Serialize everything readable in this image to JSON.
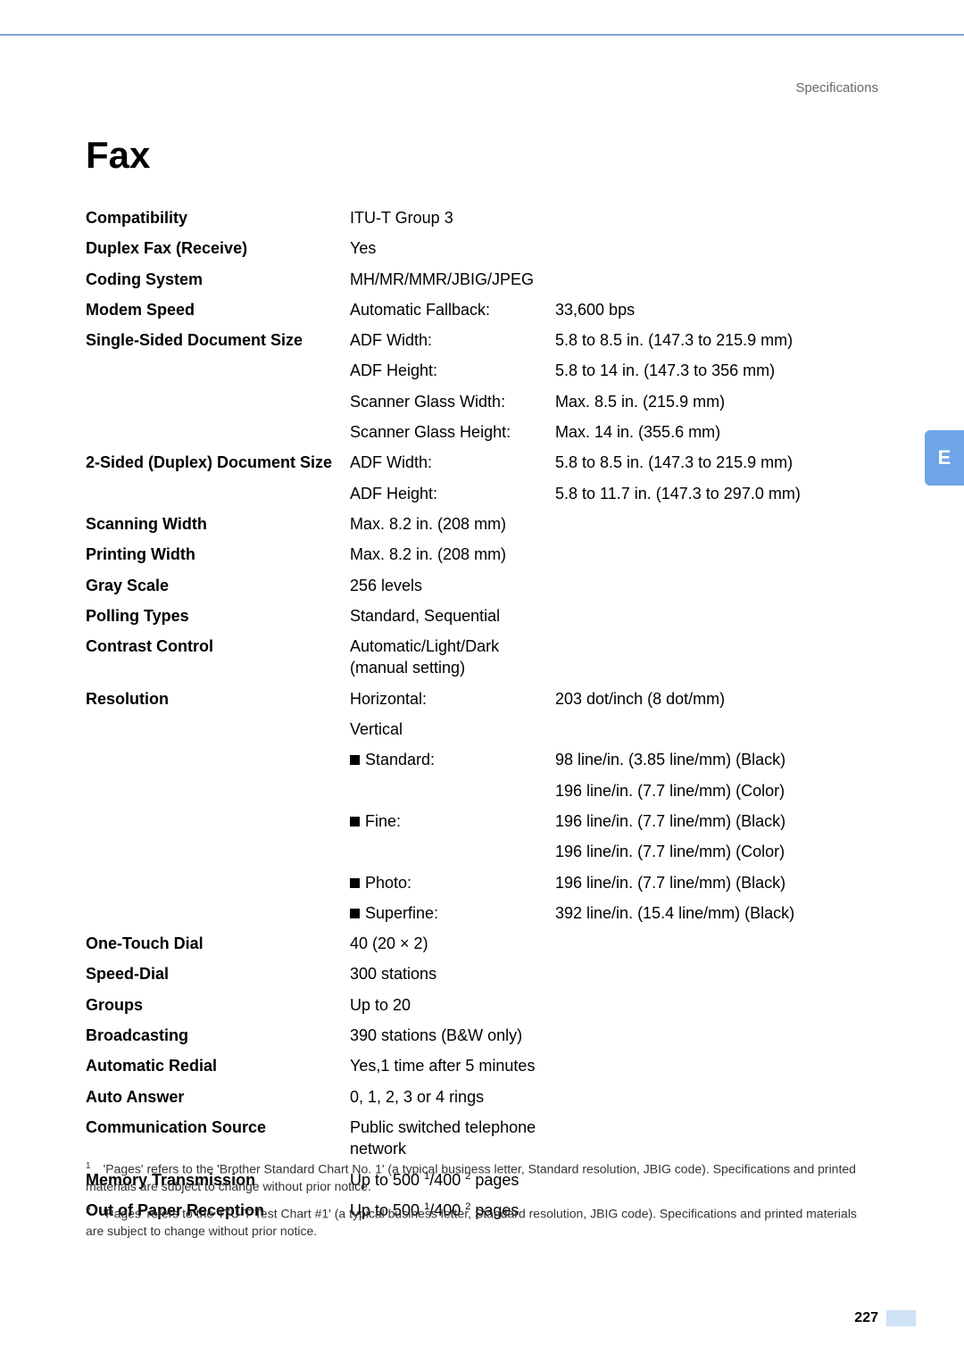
{
  "header": {
    "section": "Specifications",
    "side_tab": "E"
  },
  "title": "Fax",
  "rows": [
    {
      "label": "Compatibility",
      "mid": "ITU-T Group 3",
      "val": ""
    },
    {
      "label": "Duplex Fax (Receive)",
      "mid": "Yes",
      "val": ""
    },
    {
      "label": "Coding System",
      "mid": "MH/MR/MMR/JBIG/JPEG",
      "val": ""
    },
    {
      "label": "Modem Speed",
      "mid": "Automatic Fallback:",
      "val": "33,600 bps"
    },
    {
      "label": "Single-Sided Document Size",
      "mid": "ADF Width:",
      "val": "5.8 to 8.5 in. (147.3 to 215.9 mm)"
    },
    {
      "label": "",
      "mid": "ADF Height:",
      "val": "5.8 to 14 in. (147.3 to 356 mm)"
    },
    {
      "label": "",
      "mid": "Scanner Glass Width:",
      "val": "Max. 8.5 in. (215.9 mm)"
    },
    {
      "label": "",
      "mid": "Scanner Glass Height:",
      "val": "Max. 14 in. (355.6 mm)"
    },
    {
      "label": "2-Sided (Duplex) Document Size",
      "mid": "ADF Width:",
      "val": "5.8 to 8.5 in. (147.3 to 215.9 mm)"
    },
    {
      "label": "",
      "mid": "ADF Height:",
      "val": "5.8 to 11.7 in. (147.3 to 297.0 mm)"
    },
    {
      "label": "Scanning Width",
      "mid": "Max. 8.2 in. (208 mm)",
      "val": ""
    },
    {
      "label": "Printing Width",
      "mid": "Max. 8.2 in. (208 mm)",
      "val": ""
    },
    {
      "label": "Gray Scale",
      "mid": "256 levels",
      "val": ""
    },
    {
      "label": "Polling Types",
      "mid": "Standard, Sequential",
      "val": ""
    },
    {
      "label": "Contrast Control",
      "mid": "Automatic/Light/Dark (manual setting)",
      "val": ""
    },
    {
      "label": "Resolution",
      "mid": "Horizontal:",
      "val": "203 dot/inch (8 dot/mm)"
    },
    {
      "label": "",
      "mid": "Vertical",
      "val": ""
    },
    {
      "label": "",
      "mid": "■ Standard:",
      "val": "98 line/in. (3.85 line/mm) (Black)",
      "bullet": true,
      "mid_text": "Standard:"
    },
    {
      "label": "",
      "mid": "",
      "val": "196 line/in. (7.7 line/mm) (Color)"
    },
    {
      "label": "",
      "mid": "■ Fine:",
      "val": "196 line/in. (7.7 line/mm) (Black)",
      "bullet": true,
      "mid_text": "Fine:"
    },
    {
      "label": "",
      "mid": "",
      "val": "196 line/in. (7.7 line/mm) (Color)"
    },
    {
      "label": "",
      "mid": "■ Photo:",
      "val": "196 line/in. (7.7 line/mm) (Black)",
      "bullet": true,
      "mid_text": "Photo:"
    },
    {
      "label": "",
      "mid": "■ Superfine:",
      "val": "392 line/in. (15.4 line/mm) (Black)",
      "bullet": true,
      "mid_text": "Superfine:"
    },
    {
      "label": "One-Touch Dial",
      "mid": "40 (20 × 2)",
      "val": ""
    },
    {
      "label": "Speed-Dial",
      "mid": "300 stations",
      "val": ""
    },
    {
      "label": "Groups",
      "mid": "Up to 20",
      "val": ""
    },
    {
      "label": "Broadcasting",
      "mid": "390 stations (B&W only)",
      "val": ""
    },
    {
      "label": "Automatic Redial",
      "mid": "Yes,1 time after 5 minutes",
      "val": ""
    },
    {
      "label": "Auto Answer",
      "mid": "0, 1, 2, 3 or 4 rings",
      "val": ""
    },
    {
      "label": "Communication Source",
      "mid": "Public switched telephone network",
      "val": ""
    },
    {
      "label": "Memory Transmission",
      "mid": "Up to 500 ¹/400 ² pages",
      "val": "",
      "html_mid_prefix": "Up to 500 ",
      "html_mid_sup1": "1",
      "html_mid_middle": "/400 ",
      "html_mid_sup2": "2",
      "html_mid_suffix": " pages",
      "sup_row": true
    },
    {
      "label": "Out of Paper Reception",
      "mid": "Up to 500 ¹/400 ² pages",
      "val": "",
      "html_mid_prefix": "Up to 500 ",
      "html_mid_sup1": "1",
      "html_mid_middle": "/400 ",
      "html_mid_sup2": "2",
      "html_mid_suffix": " pages",
      "sup_row": true
    }
  ],
  "footnotes": [
    {
      "n": "1",
      "text": "'Pages' refers to the 'Brother Standard Chart No. 1' (a typical business letter, Standard resolution, JBIG code). Specifications and printed materials are subject to change without prior notice."
    },
    {
      "n": "2",
      "text": "'Pages' refers to the 'ITU-T Test Chart #1' (a typical business letter, Standard resolution, JBIG code). Specifications and printed materials are subject to change without prior notice."
    }
  ],
  "page_number": "227",
  "colors": {
    "header_rule": "#7fa4d9",
    "side_tab_bg": "#6fa5e6",
    "page_block": "#cfe1f5"
  }
}
